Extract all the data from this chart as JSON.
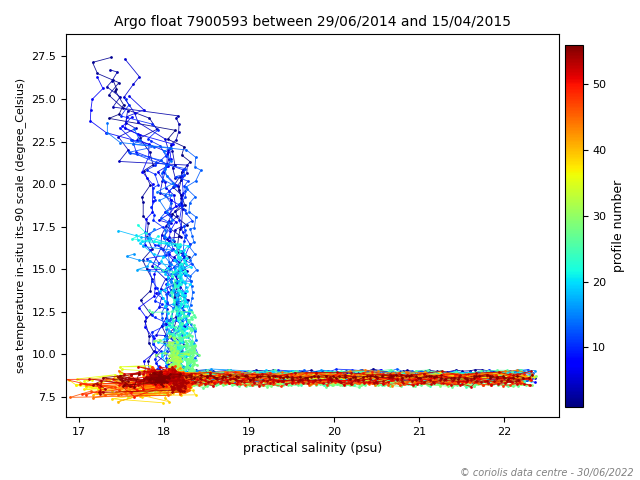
{
  "title": "Argo float 7900593 between 29/06/2014 and 15/04/2015",
  "xlabel": "practical salinity (psu)",
  "ylabel": "sea temperature in-situ its-90 scale (degree_Celsius)",
  "colorbar_label": "profile number",
  "colorbar_ticks": [
    10,
    20,
    30,
    40,
    50
  ],
  "xlim": [
    16.85,
    22.65
  ],
  "ylim": [
    6.3,
    28.8
  ],
  "n_profiles": 56,
  "copyright": "© coriolis data centre - 30/06/2022",
  "cmap": "jet",
  "bg_color": "white",
  "xticks": [
    17,
    18,
    19,
    20,
    21,
    22
  ]
}
